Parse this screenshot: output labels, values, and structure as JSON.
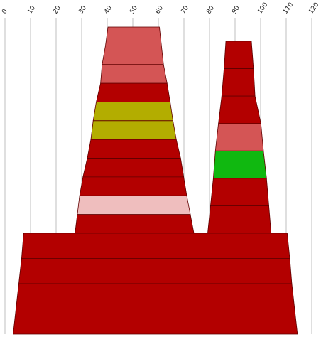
{
  "chart_data": {
    "type": "stacked-trapezoid-bar",
    "title": "",
    "xlabel": "",
    "ylabel": "",
    "xlim": [
      0,
      120
    ],
    "x_ticks": [
      {
        "value": 0,
        "label": "0"
      },
      {
        "value": 10,
        "label": "10"
      },
      {
        "value": 20,
        "label": "20"
      },
      {
        "value": 30,
        "label": "30"
      },
      {
        "value": 40,
        "label": "40"
      },
      {
        "value": 50,
        "label": "50"
      },
      {
        "value": 60,
        "label": "60"
      },
      {
        "value": 70,
        "label": "70"
      },
      {
        "value": 80,
        "label": "80"
      },
      {
        "value": 90,
        "label": "90"
      },
      {
        "value": 100,
        "label": "100"
      },
      {
        "value": 110,
        "label": "110"
      },
      {
        "value": 120,
        "label": "120"
      }
    ],
    "grid": true,
    "colors": {
      "dark_red": "#b30000",
      "salmon": "#d45555",
      "olive": "#b3ad00",
      "green": "#10b810",
      "pink": "#efbebe",
      "gridline": "#bfbfbf",
      "segment_border": "#600000"
    },
    "groups": [
      {
        "id": "left-stack",
        "segments": [
          {
            "x_start": 40.3,
            "x_end": 60.4,
            "color": "salmon"
          },
          {
            "x_start": 39.3,
            "x_end": 61.2,
            "color": "salmon"
          },
          {
            "x_start": 38.0,
            "x_end": 62.0,
            "color": "salmon"
          },
          {
            "x_start": 37.4,
            "x_end": 63.4,
            "color": "dark_red"
          },
          {
            "x_start": 35.7,
            "x_end": 64.6,
            "color": "olive"
          },
          {
            "x_start": 34.5,
            "x_end": 65.7,
            "color": "olive"
          },
          {
            "x_start": 33.6,
            "x_end": 67.0,
            "color": "dark_red"
          },
          {
            "x_start": 32.2,
            "x_end": 68.7,
            "color": "dark_red"
          },
          {
            "x_start": 30.5,
            "x_end": 69.9,
            "color": "dark_red"
          },
          {
            "x_start": 29.2,
            "x_end": 71.1,
            "color": "pink"
          },
          {
            "x_start": 28.3,
            "x_end": 72.5,
            "color": "dark_red"
          }
        ]
      },
      {
        "id": "right-stack",
        "segments": [
          {
            "x_start": 86.4,
            "x_end": 96.4,
            "color": "dark_red"
          },
          {
            "x_start": 85.7,
            "x_end": 97.2,
            "color": "dark_red"
          },
          {
            "x_start": 84.8,
            "x_end": 97.8,
            "color": "dark_red"
          },
          {
            "x_start": 83.5,
            "x_end": 100.1,
            "color": "salmon"
          },
          {
            "x_start": 82.3,
            "x_end": 101.1,
            "color": "green"
          },
          {
            "x_start": 81.5,
            "x_end": 102.3,
            "color": "dark_red"
          },
          {
            "x_start": 80.4,
            "x_end": 103.2,
            "color": "dark_red"
          }
        ]
      },
      {
        "id": "base-stack",
        "segments": [
          {
            "x_start": 7.3,
            "x_end": 110.4,
            "color": "dark_red"
          },
          {
            "x_start": 6.5,
            "x_end": 111.4,
            "color": "dark_red"
          },
          {
            "x_start": 5.4,
            "x_end": 112.2,
            "color": "dark_red"
          },
          {
            "x_start": 4.3,
            "x_end": 113.3,
            "color": "dark_red"
          }
        ]
      }
    ]
  }
}
